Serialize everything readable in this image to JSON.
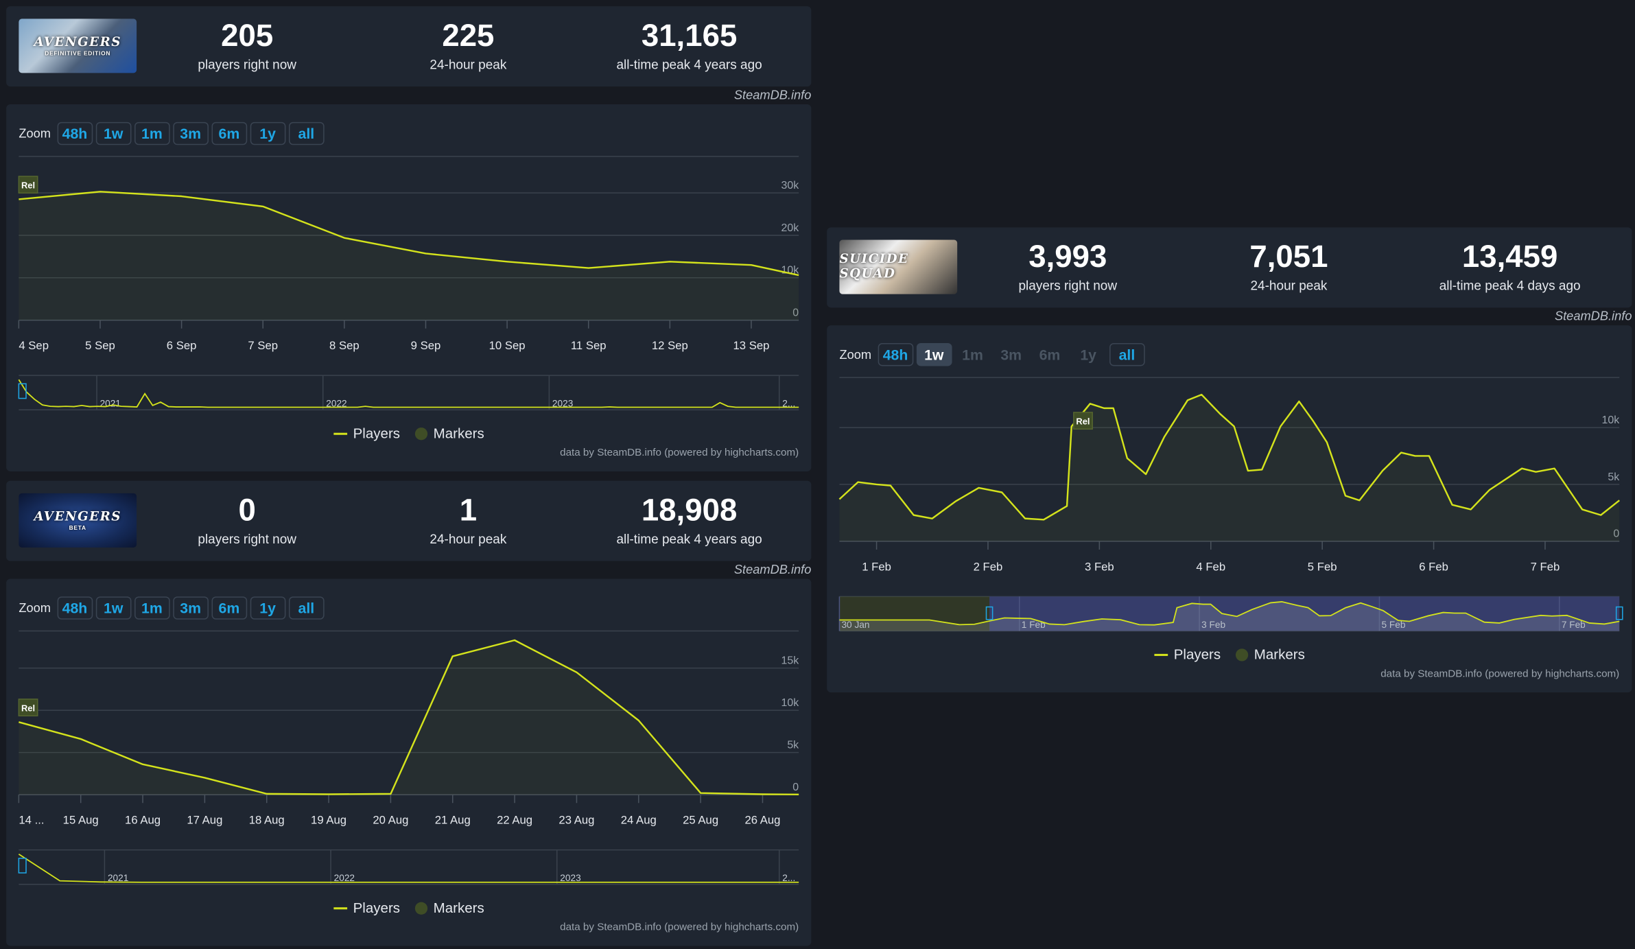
{
  "colors": {
    "line": "#d4e31c",
    "accent": "#1fa7e6",
    "marker": "#3f4d26",
    "grid": "#3a424d",
    "navigator_selection": "#363d6b"
  },
  "watermark": "SteamDB.info",
  "games": [
    {
      "thumbnail": {
        "logo_text": "AVENGERS",
        "subtitle": "DEFINITIVE EDITION"
      },
      "stats": [
        {
          "value": "205",
          "label": "players right now"
        },
        {
          "value": "225",
          "label": "24-hour peak"
        },
        {
          "value": "31,165",
          "label": "all-time peak 4 years ago"
        }
      ],
      "zoom": {
        "label": "Zoom",
        "buttons": [
          {
            "label": "48h",
            "state": "normal"
          },
          {
            "label": "1w",
            "state": "normal"
          },
          {
            "label": "1m",
            "state": "normal"
          },
          {
            "label": "3m",
            "state": "normal"
          },
          {
            "label": "6m",
            "state": "normal"
          },
          {
            "label": "1y",
            "state": "normal"
          },
          {
            "label": "all",
            "state": "normal"
          }
        ]
      },
      "legend": {
        "players": "Players",
        "markers": "Markers"
      },
      "credits": "data by SteamDB.info (powered by highcharts.com)",
      "chart_data": {
        "type": "area",
        "x_range": [
          "Sep 4 00:00",
          "Sep 13 14:00"
        ],
        "ylim": [
          0,
          38600
        ],
        "y_ticks": [
          {
            "v": 0,
            "label": "0"
          },
          {
            "v": 10000,
            "label": "10k"
          },
          {
            "v": 20000,
            "label": "20k"
          },
          {
            "v": 30000,
            "label": "30k"
          }
        ],
        "x_ticks": [
          {
            "t": "Sep 4 00:00",
            "label": "4 Sep"
          },
          {
            "t": "Sep 5 00:00",
            "label": "5 Sep"
          },
          {
            "t": "Sep 6 00:00",
            "label": "6 Sep"
          },
          {
            "t": "Sep 7 00:00",
            "label": "7 Sep"
          },
          {
            "t": "Sep 8 00:00",
            "label": "8 Sep"
          },
          {
            "t": "Sep 9 00:00",
            "label": "9 Sep"
          },
          {
            "t": "Sep 10 00:00",
            "label": "10 Sep"
          },
          {
            "t": "Sep 11 00:00",
            "label": "11 Sep"
          },
          {
            "t": "Sep 12 00:00",
            "label": "12 Sep"
          },
          {
            "t": "Sep 13 00:00",
            "label": "13 Sep"
          }
        ],
        "series": [
          {
            "name": "Players",
            "points": [
              [
                "Sep 4 00:00",
                28500
              ],
              [
                "Sep 5 00:00",
                30300
              ],
              [
                "Sep 6 00:00",
                29200
              ],
              [
                "Sep 7 00:00",
                26800
              ],
              [
                "Sep 8 00:00",
                19400
              ],
              [
                "Sep 9 00:00",
                15700
              ],
              [
                "Sep 10 00:00",
                13800
              ],
              [
                "Sep 11 00:00",
                12300
              ],
              [
                "Sep 12 00:00",
                13800
              ],
              [
                "Sep 13 00:00",
                13000
              ],
              [
                "Sep 13 14:00",
                10600
              ]
            ]
          }
        ],
        "markers": [
          {
            "t": "Sep 4 00:00",
            "label": "Rel"
          }
        ],
        "navigator": {
          "labels": [
            {
              "pos": 0.1,
              "label": "2021"
            },
            {
              "pos": 0.39,
              "label": "2022"
            },
            {
              "pos": 0.68,
              "label": "2023"
            },
            {
              "pos": 0.975,
              "label": "2..."
            }
          ],
          "values": [
            1.0,
            0.55,
            0.3,
            0.1,
            0.05,
            0.04,
            0.05,
            0.04,
            0.08,
            0.04,
            0.05,
            0.04,
            0.1,
            0.05,
            0.04,
            0.03,
            0.5,
            0.08,
            0.2,
            0.04,
            0.03,
            0.03,
            0.03,
            0.03,
            0.02,
            0.02,
            0.02,
            0.02,
            0.02,
            0.02,
            0.02,
            0.02,
            0.02,
            0.02,
            0.02,
            0.02,
            0.02,
            0.02,
            0.02,
            0.02,
            0.02,
            0.02,
            0.02,
            0.02,
            0.05,
            0.02,
            0.02,
            0.02,
            0.02,
            0.02,
            0.02,
            0.02,
            0.02,
            0.02,
            0.02,
            0.02,
            0.02,
            0.02,
            0.02,
            0.02,
            0.02,
            0.02,
            0.02,
            0.02,
            0.02,
            0.02,
            0.02,
            0.02,
            0.02,
            0.02,
            0.02,
            0.02,
            0.02,
            0.02,
            0.02,
            0.03,
            0.02,
            0.02,
            0.02,
            0.02,
            0.02,
            0.02,
            0.02,
            0.02,
            0.02,
            0.02,
            0.02,
            0.02,
            0.02,
            0.18,
            0.05,
            0.02,
            0.02,
            0.02,
            0.02,
            0.02,
            0.02,
            0.02,
            0.02,
            0.02
          ]
        }
      }
    },
    {
      "thumbnail": {
        "logo_text": "AVENGERS",
        "subtitle": "BETA"
      },
      "stats": [
        {
          "value": "0",
          "label": "players right now"
        },
        {
          "value": "1",
          "label": "24-hour peak"
        },
        {
          "value": "18,908",
          "label": "all-time peak 4 years ago"
        }
      ],
      "zoom": {
        "label": "Zoom",
        "buttons": [
          {
            "label": "48h",
            "state": "normal"
          },
          {
            "label": "1w",
            "state": "normal"
          },
          {
            "label": "1m",
            "state": "normal"
          },
          {
            "label": "3m",
            "state": "normal"
          },
          {
            "label": "6m",
            "state": "normal"
          },
          {
            "label": "1y",
            "state": "normal"
          },
          {
            "label": "all",
            "state": "normal"
          }
        ]
      },
      "legend": {
        "players": "Players",
        "markers": "Markers"
      },
      "credits": "data by SteamDB.info (powered by highcharts.com)",
      "chart_data": {
        "type": "area",
        "x_range": [
          "Aug 14 00:00",
          "Aug 26 14:00"
        ],
        "ylim": [
          0,
          19400
        ],
        "y_ticks": [
          {
            "v": 0,
            "label": "0"
          },
          {
            "v": 5000,
            "label": "5k"
          },
          {
            "v": 10000,
            "label": "10k"
          },
          {
            "v": 15000,
            "label": "15k"
          }
        ],
        "x_ticks": [
          {
            "t": "Aug 14 00:00",
            "label": "14 ..."
          },
          {
            "t": "Aug 15 00:00",
            "label": "15 Aug"
          },
          {
            "t": "Aug 16 00:00",
            "label": "16 Aug"
          },
          {
            "t": "Aug 17 00:00",
            "label": "17 Aug"
          },
          {
            "t": "Aug 18 00:00",
            "label": "18 Aug"
          },
          {
            "t": "Aug 19 00:00",
            "label": "19 Aug"
          },
          {
            "t": "Aug 20 00:00",
            "label": "20 Aug"
          },
          {
            "t": "Aug 21 00:00",
            "label": "21 Aug"
          },
          {
            "t": "Aug 22 00:00",
            "label": "22 Aug"
          },
          {
            "t": "Aug 23 00:00",
            "label": "23 Aug"
          },
          {
            "t": "Aug 24 00:00",
            "label": "24 Aug"
          },
          {
            "t": "Aug 25 00:00",
            "label": "25 Aug"
          },
          {
            "t": "Aug 26 00:00",
            "label": "26 Aug"
          }
        ],
        "series": [
          {
            "name": "Players",
            "points": [
              [
                "Aug 14 00:00",
                8600
              ],
              [
                "Aug 15 00:00",
                6600
              ],
              [
                "Aug 16 00:00",
                3600
              ],
              [
                "Aug 17 00:00",
                2000
              ],
              [
                "Aug 18 00:00",
                100
              ],
              [
                "Aug 19 00:00",
                50
              ],
              [
                "Aug 20 00:00",
                100
              ],
              [
                "Aug 21 00:00",
                16400
              ],
              [
                "Aug 22 00:00",
                18300
              ],
              [
                "Aug 23 00:00",
                14500
              ],
              [
                "Aug 24 00:00",
                8800
              ],
              [
                "Aug 25 00:00",
                200
              ],
              [
                "Aug 26 00:00",
                50
              ],
              [
                "Aug 26 14:00",
                20
              ]
            ]
          }
        ],
        "markers": [
          {
            "t": "Aug 14 00:00",
            "label": "Rel"
          }
        ],
        "navigator": {
          "labels": [
            {
              "pos": 0.11,
              "label": "2021"
            },
            {
              "pos": 0.4,
              "label": "2022"
            },
            {
              "pos": 0.69,
              "label": "2023"
            },
            {
              "pos": 0.975,
              "label": "2..."
            }
          ],
          "values": [
            1.0,
            0.05,
            0.01,
            0.0,
            0.0,
            0.0,
            0.0,
            0.0,
            0.0,
            0.0,
            0.0,
            0.0,
            0.0,
            0.0,
            0.0,
            0.0,
            0.0,
            0.0,
            0.0,
            0.0
          ]
        }
      }
    },
    {
      "thumbnail": {
        "logo_text": "SUICIDE SQUAD",
        "subtitle": ""
      },
      "stats": [
        {
          "value": "3,993",
          "label": "players right now"
        },
        {
          "value": "7,051",
          "label": "24-hour peak"
        },
        {
          "value": "13,459",
          "label": "all-time peak 4 days ago"
        }
      ],
      "zoom": {
        "label": "Zoom",
        "buttons": [
          {
            "label": "48h",
            "state": "normal"
          },
          {
            "label": "1w",
            "state": "active"
          },
          {
            "label": "1m",
            "state": "disabled"
          },
          {
            "label": "3m",
            "state": "disabled"
          },
          {
            "label": "6m",
            "state": "disabled"
          },
          {
            "label": "1y",
            "state": "disabled"
          },
          {
            "label": "all",
            "state": "normal"
          }
        ]
      },
      "legend": {
        "players": "Players",
        "markers": "Markers"
      },
      "credits": "data by SteamDB.info (powered by highcharts.com)",
      "chart_data": {
        "type": "area",
        "x_range": [
          "Jan 31 16:00",
          "Feb 7 16:00"
        ],
        "ylim": [
          0,
          14400
        ],
        "y_ticks": [
          {
            "v": 0,
            "label": "0"
          },
          {
            "v": 5000,
            "label": "5k"
          },
          {
            "v": 10000,
            "label": "10k"
          }
        ],
        "x_ticks": [
          {
            "t": "Feb 1 00:00",
            "label": "1 Feb"
          },
          {
            "t": "Feb 2 00:00",
            "label": "2 Feb"
          },
          {
            "t": "Feb 3 00:00",
            "label": "3 Feb"
          },
          {
            "t": "Feb 4 00:00",
            "label": "4 Feb"
          },
          {
            "t": "Feb 5 00:00",
            "label": "5 Feb"
          },
          {
            "t": "Feb 6 00:00",
            "label": "6 Feb"
          },
          {
            "t": "Feb 7 00:00",
            "label": "7 Feb"
          }
        ],
        "series": [
          {
            "name": "Players",
            "points": [
              [
                "Jan 31 16:00",
                3700
              ],
              [
                "Jan 31 20:00",
                5200
              ],
              [
                "Feb 1 00:00",
                5000
              ],
              [
                "Feb 1 03:00",
                4900
              ],
              [
                "Feb 1 08:00",
                2300
              ],
              [
                "Feb 1 12:00",
                2000
              ],
              [
                "Feb 1 17:00",
                3500
              ],
              [
                "Feb 1 22:00",
                4700
              ],
              [
                "Feb 2 03:00",
                4300
              ],
              [
                "Feb 2 08:00",
                2000
              ],
              [
                "Feb 2 12:00",
                1900
              ],
              [
                "Feb 2 17:00",
                3100
              ],
              [
                "Feb 2 18:00",
                10100
              ],
              [
                "Feb 2 22:00",
                12100
              ],
              [
                "Feb 3 01:00",
                11700
              ],
              [
                "Feb 3 03:00",
                11700
              ],
              [
                "Feb 3 06:00",
                7300
              ],
              [
                "Feb 3 10:00",
                5900
              ],
              [
                "Feb 3 14:00",
                9200
              ],
              [
                "Feb 3 19:00",
                12400
              ],
              [
                "Feb 3 22:00",
                12900
              ],
              [
                "Feb 4 02:00",
                11200
              ],
              [
                "Feb 4 05:00",
                10100
              ],
              [
                "Feb 4 08:00",
                6200
              ],
              [
                "Feb 4 11:00",
                6300
              ],
              [
                "Feb 4 15:00",
                10100
              ],
              [
                "Feb 4 19:00",
                12300
              ],
              [
                "Feb 4 22:00",
                10600
              ],
              [
                "Feb 5 01:00",
                8700
              ],
              [
                "Feb 5 05:00",
                4000
              ],
              [
                "Feb 5 08:00",
                3600
              ],
              [
                "Feb 5 13:00",
                6200
              ],
              [
                "Feb 5 17:00",
                7800
              ],
              [
                "Feb 5 20:00",
                7500
              ],
              [
                "Feb 5 23:00",
                7500
              ],
              [
                "Feb 6 04:00",
                3200
              ],
              [
                "Feb 6 08:00",
                2800
              ],
              [
                "Feb 6 12:00",
                4500
              ],
              [
                "Feb 6 19:00",
                6400
              ],
              [
                "Feb 6 22:00",
                6100
              ],
              [
                "Feb 7 02:00",
                6400
              ],
              [
                "Feb 7 08:00",
                2800
              ],
              [
                "Feb 7 12:00",
                2300
              ],
              [
                "Feb 7 16:00",
                3600
              ]
            ]
          }
        ],
        "markers": [
          {
            "t": "Feb 2 18:00",
            "label": "Rel"
          }
        ],
        "navigator": {
          "x_range": [
            "Jan 30 00:00",
            "Feb 7 16:00"
          ],
          "selection": [
            "Jan 31 16:00",
            "Feb 7 16:00"
          ],
          "labels": [
            {
              "t": "Jan 30 00:00",
              "label": "30 Jan"
            },
            {
              "t": "Feb 1 00:00",
              "label": "1 Feb"
            },
            {
              "t": "Feb 3 00:00",
              "label": "3 Feb"
            },
            {
              "t": "Feb 5 00:00",
              "label": "5 Feb"
            },
            {
              "t": "Feb 7 00:00",
              "label": "7 Feb"
            }
          ],
          "prefix": [
            [
              "Jan 30 00:00",
              4200
            ],
            [
              "Jan 31 00:00",
              4200
            ],
            [
              "Jan 31 08:00",
              2000
            ],
            [
              "Jan 31 12:00",
              2200
            ]
          ]
        }
      }
    }
  ]
}
